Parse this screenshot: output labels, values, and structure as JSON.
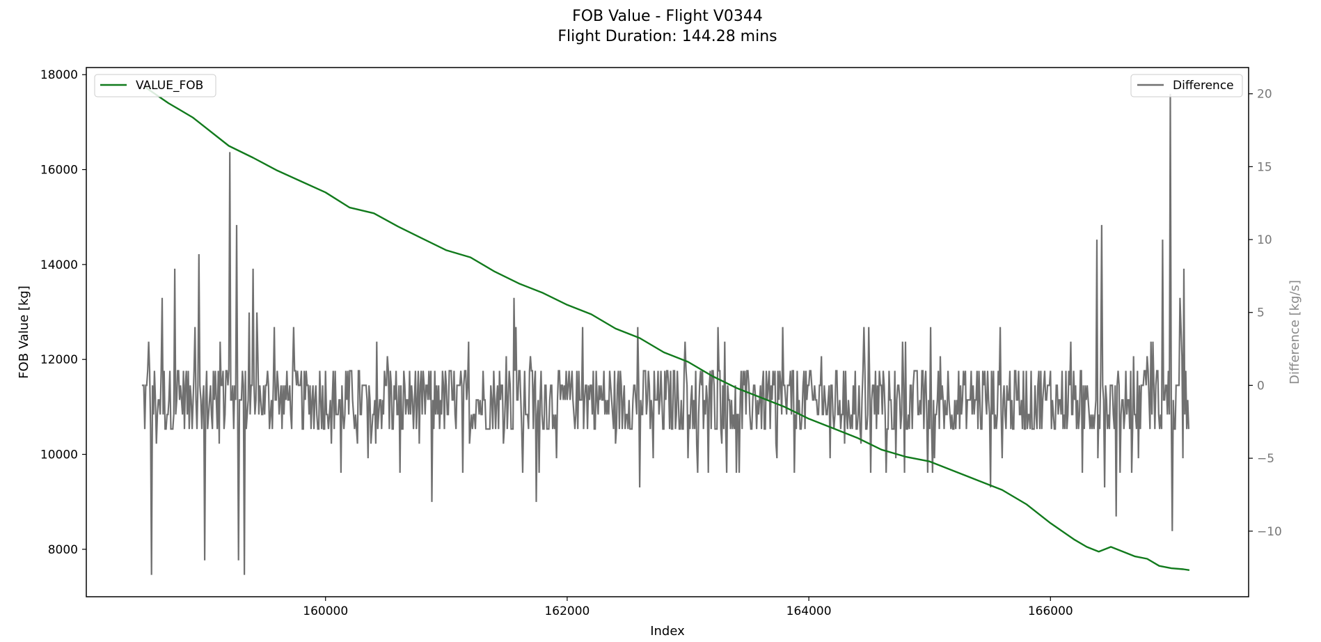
{
  "chart_data": {
    "type": "line",
    "title": "FOB Value - Flight V0344",
    "subtitle": "Flight Duration: 144.28 mins",
    "xlabel": "Index",
    "ylabel": "FOB Value [kg]",
    "y2label": "Difference [kg/s]",
    "xlim": [
      158020,
      167640
    ],
    "ylim": [
      7000,
      18150
    ],
    "y2lim": [
      -14.5,
      21.8
    ],
    "xticks": [
      160000,
      162000,
      164000,
      166000
    ],
    "xtick_labels": [
      "160000",
      "162000",
      "164000",
      "166000"
    ],
    "yticks": [
      8000,
      10000,
      12000,
      14000,
      16000,
      18000
    ],
    "ytick_labels": [
      "8000",
      "10000",
      "12000",
      "14000",
      "16000",
      "18000"
    ],
    "y2ticks": [
      -10,
      -5,
      0,
      5,
      10,
      15,
      20
    ],
    "y2tick_labels": [
      "−10",
      "−5",
      "0",
      "5",
      "10",
      "15",
      "20"
    ],
    "grid": false,
    "series": [
      {
        "name": "VALUE_FOB",
        "axis": "left",
        "color": "#117a1c",
        "legend_position": "top-left",
        "x": [
          158500,
          158700,
          158900,
          159000,
          159200,
          159400,
          159600,
          159800,
          160000,
          160200,
          160400,
          160600,
          160800,
          161000,
          161200,
          161400,
          161600,
          161800,
          162000,
          162200,
          162400,
          162600,
          162800,
          163000,
          163200,
          163400,
          163600,
          163800,
          164000,
          164200,
          164400,
          164600,
          164800,
          165000,
          165200,
          165400,
          165600,
          165800,
          166000,
          166200,
          166300,
          166400,
          166500,
          166600,
          166700,
          166800,
          166900,
          167000,
          167100,
          167150
        ],
        "values": [
          17750,
          17400,
          17100,
          16900,
          16500,
          16250,
          15980,
          15750,
          15520,
          15200,
          15080,
          14800,
          14550,
          14300,
          14150,
          13850,
          13600,
          13400,
          13150,
          12950,
          12650,
          12450,
          12150,
          11950,
          11650,
          11400,
          11200,
          11000,
          10750,
          10550,
          10350,
          10100,
          9950,
          9850,
          9650,
          9450,
          9250,
          8950,
          8550,
          8200,
          8050,
          7950,
          8050,
          7950,
          7850,
          7800,
          7650,
          7600,
          7580,
          7560
        ]
      },
      {
        "name": "Difference",
        "axis": "right",
        "color": "#707070",
        "legend_position": "top-right",
        "x_start": 158480,
        "x_end": 167150,
        "sample_step": 8,
        "base_levels": [
          -3,
          -2,
          -1,
          0,
          1
        ],
        "burst_regions": [
          [
            158480,
            159450
          ],
          [
            166350,
            167150
          ]
        ],
        "spikes": [
          {
            "x": 158560,
            "value": -13
          },
          {
            "x": 158650,
            "value": 6
          },
          {
            "x": 158750,
            "value": 8
          },
          {
            "x": 158950,
            "value": 9
          },
          {
            "x": 159000,
            "value": -12
          },
          {
            "x": 159210,
            "value": 16
          },
          {
            "x": 159260,
            "value": 11
          },
          {
            "x": 159280,
            "value": -12
          },
          {
            "x": 159330,
            "value": -13
          },
          {
            "x": 159400,
            "value": 8
          },
          {
            "x": 160880,
            "value": -8
          },
          {
            "x": 161560,
            "value": 6
          },
          {
            "x": 161740,
            "value": -8
          },
          {
            "x": 162580,
            "value": 4
          },
          {
            "x": 162600,
            "value": -7
          },
          {
            "x": 163300,
            "value": 3
          },
          {
            "x": 165500,
            "value": -7
          },
          {
            "x": 166380,
            "value": 10
          },
          {
            "x": 166420,
            "value": 11
          },
          {
            "x": 166450,
            "value": -7
          },
          {
            "x": 166540,
            "value": -9
          },
          {
            "x": 166930,
            "value": 10
          },
          {
            "x": 166990,
            "value": 20
          },
          {
            "x": 167010,
            "value": -10
          },
          {
            "x": 167100,
            "value": 8
          }
        ]
      }
    ]
  }
}
